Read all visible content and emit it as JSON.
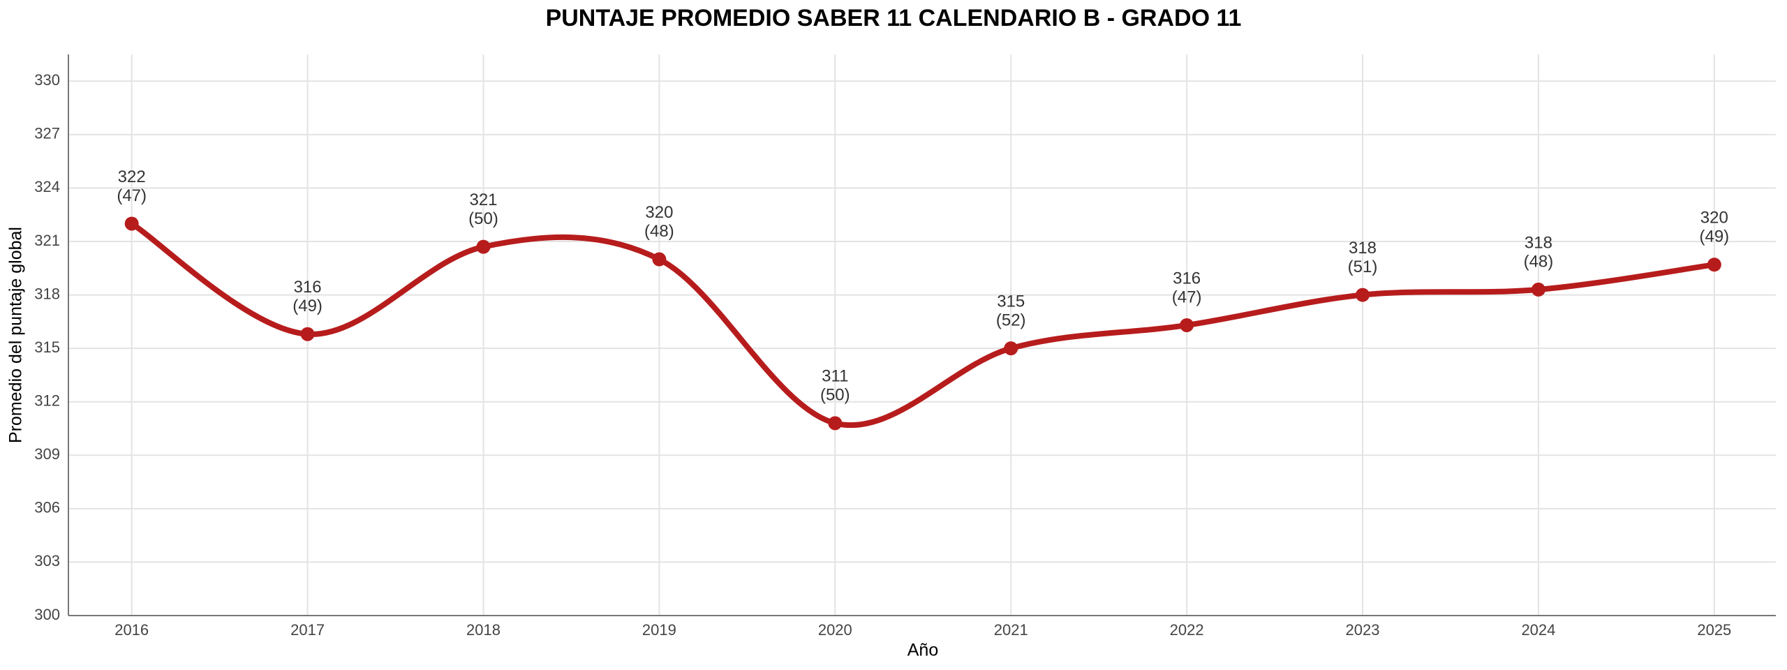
{
  "chart_data": {
    "type": "line",
    "title": "PUNTAJE PROMEDIO SABER 11 CALENDARIO B - GRADO 11",
    "x_label": "Año",
    "y_label": "Promedio del puntaje global",
    "x": [
      2016,
      2017,
      2018,
      2019,
      2020,
      2021,
      2022,
      2023,
      2024,
      2025
    ],
    "series": [
      {
        "name": "Puntaje promedio",
        "color": "#b71c1c",
        "values": [
          322.0,
          315.8,
          320.7,
          320.0,
          310.8,
          315.0,
          316.3,
          318.0,
          318.3,
          319.7
        ],
        "value_labels": [
          "322",
          "316",
          "321",
          "320",
          "311",
          "315",
          "316",
          "318",
          "318",
          "320"
        ],
        "count_labels": [
          "(47)",
          "(49)",
          "(50)",
          "(48)",
          "(50)",
          "(52)",
          "(47)",
          "(51)",
          "(48)",
          "(49)"
        ]
      }
    ],
    "xlim": [
      2015.64,
      2025.35
    ],
    "xticks": [
      2016,
      2017,
      2018,
      2019,
      2020,
      2021,
      2022,
      2023,
      2024,
      2025
    ],
    "ylim": [
      300,
      331.5
    ],
    "yticks": [
      300,
      303,
      306,
      309,
      312,
      315,
      318,
      321,
      324,
      327,
      330
    ],
    "grid": true,
    "smooth": true
  }
}
